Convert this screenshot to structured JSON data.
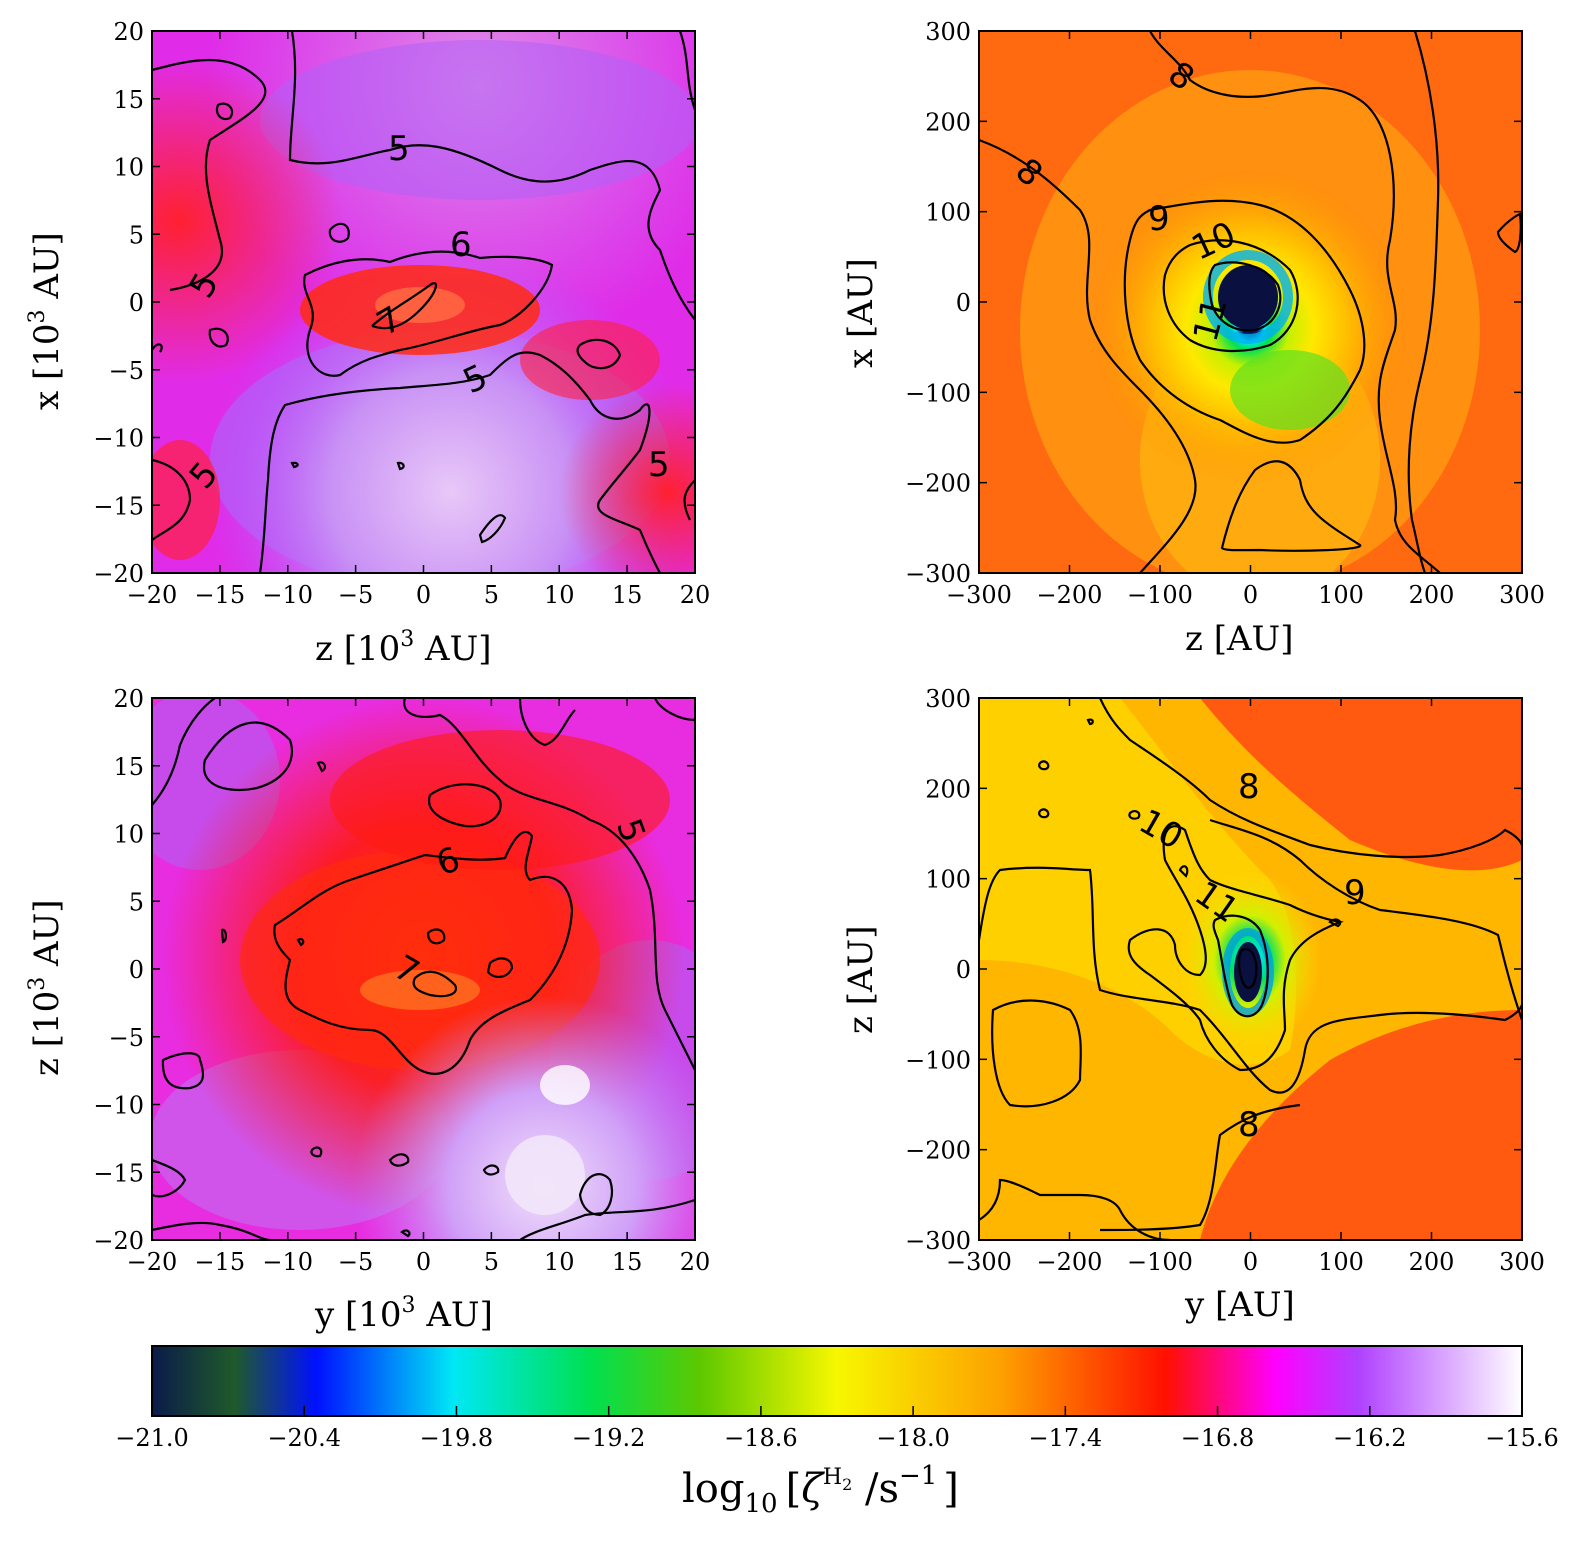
{
  "chart_data": [
    {
      "type": "heatmap",
      "panel": "top-left",
      "xlabel": "z [10^3 AU]",
      "ylabel": "x [10^3 AU]",
      "xlim": [
        -20,
        20
      ],
      "ylim": [
        -20,
        20
      ],
      "xticks": [
        "−20",
        "−15",
        "−10",
        "−5",
        "0",
        "5",
        "10",
        "15",
        "20"
      ],
      "yticks": [
        "20",
        "15",
        "10",
        "5",
        "0",
        "−5",
        "−10",
        "−15",
        "−20"
      ],
      "contour_labels": [
        "5",
        "6",
        "7",
        "5",
        "5",
        "5",
        "5"
      ]
    },
    {
      "type": "heatmap",
      "panel": "top-right",
      "xlabel": "z [AU]",
      "ylabel": "x [AU]",
      "xlim": [
        -300,
        300
      ],
      "ylim": [
        -300,
        300
      ],
      "xticks": [
        "−300",
        "−200",
        "−100",
        "0",
        "100",
        "200",
        "300"
      ],
      "yticks": [
        "300",
        "200",
        "100",
        "0",
        "−100",
        "−200",
        "−300"
      ],
      "contour_labels": [
        "8",
        "8",
        "9",
        "10",
        "11"
      ]
    },
    {
      "type": "heatmap",
      "panel": "bottom-left",
      "xlabel": "y [10^3 AU]",
      "ylabel": "z [10^3 AU]",
      "xlim": [
        -20,
        20
      ],
      "ylim": [
        -20,
        20
      ],
      "xticks": [
        "−20",
        "−15",
        "−10",
        "−5",
        "0",
        "5",
        "10",
        "15",
        "20"
      ],
      "yticks": [
        "20",
        "15",
        "10",
        "5",
        "0",
        "−5",
        "−10",
        "−15",
        "−20"
      ],
      "contour_labels": [
        "6",
        "5",
        "7"
      ]
    },
    {
      "type": "heatmap",
      "panel": "bottom-right",
      "xlabel": "y [AU]",
      "ylabel": "z [AU]",
      "xlim": [
        -300,
        300
      ],
      "ylim": [
        -300,
        300
      ],
      "xticks": [
        "−300",
        "−200",
        "−100",
        "0",
        "100",
        "200",
        "300"
      ],
      "yticks": [
        "300",
        "200",
        "100",
        "0",
        "−100",
        "−200",
        "−300"
      ],
      "contour_labels": [
        "8",
        "10",
        "9",
        "11",
        "8"
      ]
    }
  ],
  "colorbar": {
    "label": "log10 [ζ^H2 /s^−1]",
    "range": [
      -21.0,
      -15.6
    ],
    "ticks": [
      "−21.0",
      "−20.4",
      "−19.8",
      "−19.2",
      "−18.6",
      "−18.0",
      "−17.4",
      "−16.8",
      "−16.2",
      "−15.6"
    ],
    "colors": {
      "navy": "#0a1a4a",
      "darkgreen": "#1f5a2a",
      "blue": "#0010ff",
      "cyan": "#00e8f5",
      "green": "#00e050",
      "olive": "#5dc800",
      "yellow": "#f7f700",
      "orange": "#fda000",
      "red": "#ff1000",
      "magenta": "#ff00ff",
      "purple": "#b040ff",
      "white": "#ffffff"
    }
  },
  "labels": {
    "tl_x_unit": "z [10",
    "tl_x_rest": " AU]",
    "tl_y_unit": "x [10",
    "tl_y_rest": " AU]",
    "tr_x": "z [AU]",
    "tr_y": "x [AU]",
    "bl_x_unit": "y [10",
    "bl_x_rest": " AU]",
    "bl_y_unit": "z [10",
    "bl_y_rest": " AU]",
    "br_x": "y [AU]",
    "br_y": "z [AU]",
    "exp": "3",
    "cb_log": "log",
    "cb_log_sub": "10",
    "cb_open": "[",
    "cb_zeta": "ζ",
    "cb_h2": "H",
    "cb_h2_sub": "2",
    "cb_unit": " /s",
    "cb_unit_sup": "−1",
    "cb_close": "]"
  }
}
